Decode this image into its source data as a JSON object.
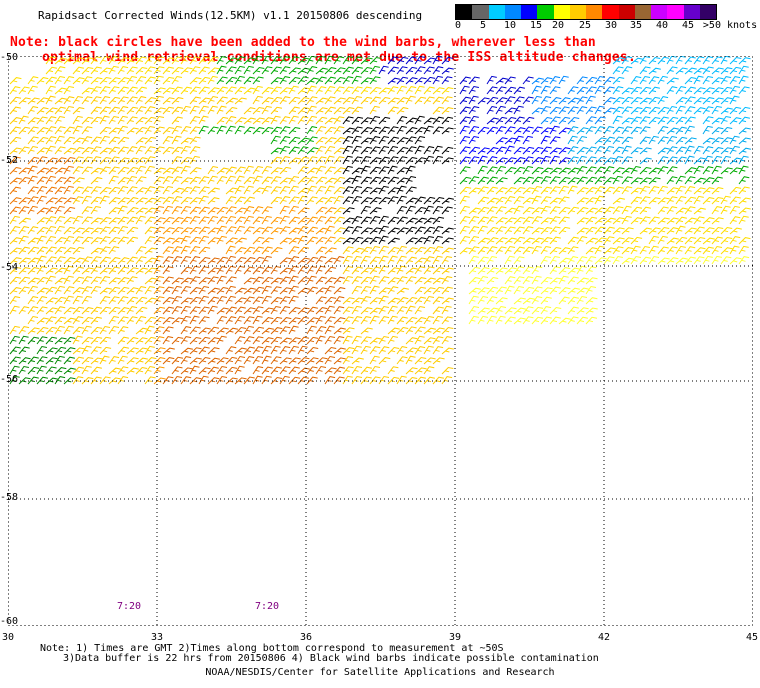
{
  "title": "Rapidsact Corrected Winds(12.5KM) v1.1 20150806 descending",
  "note_line1": "Note: black circles have been added to the wind barbs, wherever less than",
  "note_line2": "optimal wind retrieval conditions are met due to the ISS altitude changes.",
  "legend": {
    "colors": [
      "#000000",
      "#666666",
      "#00ccff",
      "#0088ff",
      "#0000ff",
      "#00cc00",
      "#ffff00",
      "#ffcc00",
      "#ff8800",
      "#ff0000",
      "#cc0000",
      "#996633",
      "#cc00ff",
      "#ff00ff",
      "#6600cc",
      "#330066"
    ],
    "labels": [
      "0",
      "5",
      "10",
      "15",
      "20",
      "25",
      "30",
      "35",
      "40",
      "45",
      ">50 knots"
    ]
  },
  "lat_labels": [
    "-50",
    "-52",
    "-54",
    "-56",
    "-58",
    "-60"
  ],
  "lon_labels": [
    "30",
    "33",
    "36",
    "39",
    "42",
    "45"
  ],
  "time_labels": [
    "7:20",
    "7:20"
  ],
  "footnote_line1": "Note: 1) Times are GMT 2)Times along bottom correspond to measurement at ~50S",
  "footnote_line2": "3)Data buffer is 22 hrs from 20150806 4) Black wind barbs indicate possible contamination",
  "credit": "NOAA/NESDIS/Center for Satellite Applications and Research"
}
